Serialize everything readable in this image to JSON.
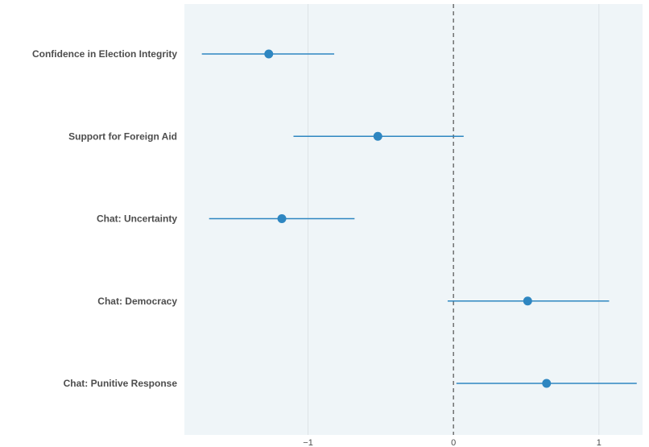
{
  "chart_data": {
    "type": "scatter",
    "subtype": "coefficient-plot-with-error-bars",
    "orientation": "horizontal",
    "title": "",
    "xlabel": "",
    "ylabel": "",
    "xlim": [
      -1.85,
      1.3
    ],
    "x_ticks": [
      -1,
      0,
      1
    ],
    "x_tick_labels": [
      "−1",
      "0",
      "1"
    ],
    "reference_line": {
      "x": 0,
      "style": "dashed",
      "color": "#666666"
    },
    "grid": {
      "vertical": true,
      "horizontal": false
    },
    "legend": "none",
    "colors": {
      "panel_background": "#eff5f8",
      "grid": "#dde3e6",
      "point": "#2e86c1",
      "error_bar": "#2e86c1"
    },
    "categories": [
      "Confidence in Election Integrity",
      "Support for Foreign Aid",
      "Chat: Uncertainty",
      "Chat: Democracy",
      "Chat: Punitive Response"
    ],
    "estimates": [
      -1.27,
      -0.52,
      -1.18,
      0.51,
      0.64
    ],
    "ci_low": [
      -1.73,
      -1.1,
      -1.68,
      -0.04,
      0.02
    ],
    "ci_high": [
      -0.82,
      0.07,
      -0.68,
      1.07,
      1.26
    ]
  }
}
